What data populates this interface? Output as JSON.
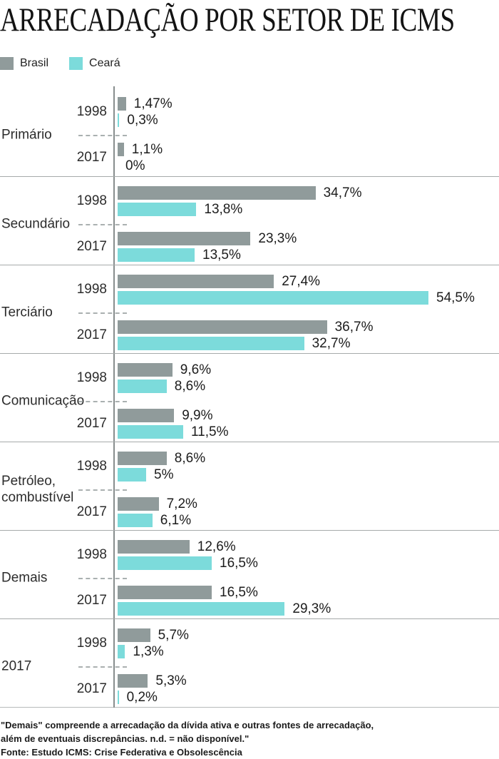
{
  "title": "ARRECADAÇÃO POR SETOR DE ICMS",
  "legend": {
    "brasil": {
      "label": "Brasil",
      "color": "#909b9b"
    },
    "ceara": {
      "label": "Ceará",
      "color": "#7cdbdb"
    }
  },
  "colors": {
    "brasil_bar": "#909b9b",
    "ceara_bar": "#7cdbdb",
    "axis_line": "#878d8d",
    "separator_line": "#a6aaaa",
    "text": "#1c1c1c"
  },
  "chart_data": {
    "type": "bar",
    "orientation": "horizontal",
    "unit": "%",
    "xlim": [
      0,
      60
    ],
    "grid": false,
    "legend_position": "top-left",
    "series_names": [
      "Brasil",
      "Ceará"
    ],
    "sections": [
      {
        "category": "Primário",
        "rows": [
          {
            "year": "1998",
            "brasil": 1.47,
            "brasil_label": "1,47%",
            "ceara": 0.3,
            "ceara_label": "0,3%"
          },
          {
            "year": "2017",
            "brasil": 1.1,
            "brasil_label": "1,1%",
            "ceara": 0,
            "ceara_label": "0%"
          }
        ]
      },
      {
        "category": "Secundário",
        "rows": [
          {
            "year": "1998",
            "brasil": 34.7,
            "brasil_label": "34,7%",
            "ceara": 13.8,
            "ceara_label": "13,8%"
          },
          {
            "year": "2017",
            "brasil": 23.3,
            "brasil_label": "23,3%",
            "ceara": 13.5,
            "ceara_label": "13,5%"
          }
        ]
      },
      {
        "category": "Terciário",
        "rows": [
          {
            "year": "1998",
            "brasil": 27.4,
            "brasil_label": "27,4%",
            "ceara": 54.5,
            "ceara_label": "54,5%"
          },
          {
            "year": "2017",
            "brasil": 36.7,
            "brasil_label": "36,7%",
            "ceara": 32.7,
            "ceara_label": "32,7%"
          }
        ]
      },
      {
        "category": "Comunicação",
        "rows": [
          {
            "year": "1998",
            "brasil": 9.6,
            "brasil_label": "9,6%",
            "ceara": 8.6,
            "ceara_label": "8,6%"
          },
          {
            "year": "2017",
            "brasil": 9.9,
            "brasil_label": "9,9%",
            "ceara": 11.5,
            "ceara_label": "11,5%"
          }
        ]
      },
      {
        "category": "Petróleo,\ncombustível",
        "rows": [
          {
            "year": "1998",
            "brasil": 8.6,
            "brasil_label": "8,6%",
            "ceara": 5,
            "ceara_label": "5%"
          },
          {
            "year": "2017",
            "brasil": 7.2,
            "brasil_label": "7,2%",
            "ceara": 6.1,
            "ceara_label": "6,1%"
          }
        ]
      },
      {
        "category": "Demais",
        "rows": [
          {
            "year": "1998",
            "brasil": 12.6,
            "brasil_label": "12,6%",
            "ceara": 16.5,
            "ceara_label": "16,5%"
          },
          {
            "year": "2017",
            "brasil": 16.5,
            "brasil_label": "16,5%",
            "ceara": 29.3,
            "ceara_label": "29,3%"
          }
        ]
      },
      {
        "category": "2017",
        "rows": [
          {
            "year": "1998",
            "brasil": 5.7,
            "brasil_label": "5,7%",
            "ceara": 1.3,
            "ceara_label": "1,3%"
          },
          {
            "year": "2017",
            "brasil": 5.3,
            "brasil_label": "5,3%",
            "ceara": 0.2,
            "ceara_label": "0,2%"
          }
        ]
      }
    ]
  },
  "footer": {
    "note_line1": "\"Demais\" compreende a arrecadação da dívida ativa e outras fontes de arrecadação,",
    "note_line2": "além de eventuais discrepâncias. n.d. = não disponível.\"",
    "source": "Fonte: Estudo ICMS: Crise Federativa e Obsolescência"
  }
}
